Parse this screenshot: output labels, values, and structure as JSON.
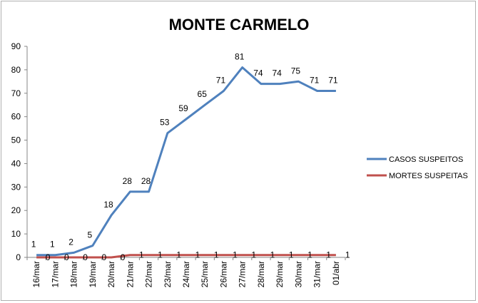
{
  "chart_data": {
    "type": "line",
    "title": "MONTE CARMELO",
    "xlabel": "",
    "ylabel": "",
    "ylim": [
      0,
      90
    ],
    "yticks": [
      0,
      10,
      20,
      30,
      40,
      50,
      60,
      70,
      80,
      90
    ],
    "grid": false,
    "legend_position": "right",
    "categories": [
      "16/mar",
      "17/mar",
      "18/mar",
      "19/mar",
      "20/mar",
      "21/mar",
      "22/mar",
      "23/mar",
      "24/mar",
      "25/mar",
      "26/mar",
      "27/mar",
      "28/mar",
      "29/mar",
      "30/mar",
      "31/mar",
      "01/abr"
    ],
    "series": [
      {
        "name": "CASOS SUSPEITOS",
        "color": "#4f81bd",
        "values": [
          1,
          1,
          2,
          5,
          18,
          28,
          28,
          53,
          59,
          65,
          71,
          81,
          74,
          74,
          75,
          71,
          71
        ]
      },
      {
        "name": "MORTES SUSPEITAS",
        "color": "#c0504d",
        "values": [
          0,
          0,
          0,
          0,
          0,
          1,
          1,
          1,
          1,
          1,
          1,
          1,
          1,
          1,
          1,
          1,
          1
        ]
      }
    ]
  }
}
